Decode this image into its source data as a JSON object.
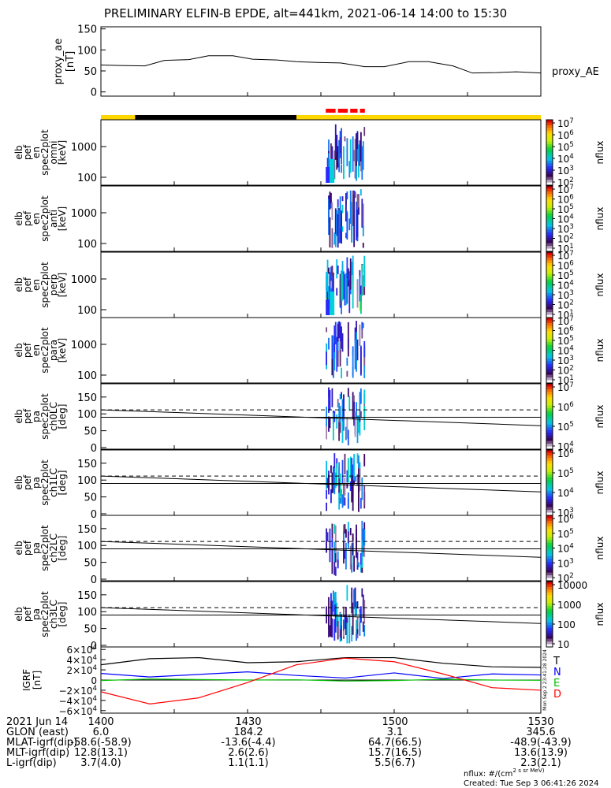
{
  "title": "PRELIMINARY ELFIN-B EPDE, alt=441km, 2021-06-14 14:00 to 15:30",
  "colors": {
    "orbit_bar_yellow": "#ffd700",
    "orbit_bar_black": "#000000",
    "science_marker_red": "#ff0000",
    "igrf_t": "#000000",
    "igrf_n": "#0000ff",
    "igrf_e": "#00c000",
    "igrf_d": "#ff0000"
  },
  "chart_data": [
    {
      "type": "line",
      "name": "proxy_ae",
      "ylabel_lines": [
        "proxy_ae",
        "[nT]"
      ],
      "legend": "proxy_AE",
      "ylim": [
        -10,
        155
      ],
      "yticks": [
        "0",
        "50",
        "100",
        "150"
      ],
      "x_minutes": [
        0,
        4,
        9,
        13,
        18,
        22,
        27,
        31,
        36,
        40,
        45,
        49,
        54,
        58,
        63,
        67,
        72,
        76,
        81,
        85,
        90
      ],
      "values": [
        64,
        63,
        62,
        75,
        77,
        86,
        86,
        78,
        76,
        72,
        70,
        69,
        60,
        60,
        72,
        72,
        62,
        45,
        46,
        48,
        45
      ]
    },
    {
      "type": "heatmap",
      "name": "elb_pef_en_spec2plot_omni",
      "ylabel_lines": [
        "elb",
        "pef",
        "en",
        "spec2plot",
        "omni",
        "[keV]"
      ],
      "yscale": "log",
      "yticks": [
        "100",
        "1000"
      ],
      "colorbar_label": "nflux",
      "colorbar_ticks": [
        "10^2",
        "10^3",
        "10^4",
        "10^5",
        "10^6",
        "10^7"
      ],
      "active_window_minutes": [
        46,
        54
      ]
    },
    {
      "type": "heatmap",
      "name": "elb_pef_en_spec2plot_anti",
      "ylabel_lines": [
        "elb",
        "pef",
        "en",
        "spec2plot",
        "anti",
        "[keV]"
      ],
      "yscale": "log",
      "yticks": [
        "100",
        "1000"
      ],
      "colorbar_label": "nflux",
      "colorbar_ticks": [
        "10^1",
        "10^2",
        "10^3",
        "10^4",
        "10^5",
        "10^6",
        "10^7"
      ]
    },
    {
      "type": "heatmap",
      "name": "elb_pef_en_spec2plot_perp",
      "ylabel_lines": [
        "elb",
        "pef",
        "en",
        "spec2plot",
        "perp",
        "[keV]"
      ],
      "yscale": "log",
      "yticks": [
        "100",
        "1000"
      ],
      "colorbar_label": "nflux",
      "colorbar_ticks": [
        "10^1",
        "10^2",
        "10^3",
        "10^4",
        "10^5",
        "10^6",
        "10^7"
      ]
    },
    {
      "type": "heatmap",
      "name": "elb_pef_en_spec2plot_para",
      "ylabel_lines": [
        "elb",
        "pef",
        "en",
        "spec2plot",
        "para",
        "[keV]"
      ],
      "yscale": "log",
      "yticks": [
        "100",
        "1000"
      ],
      "colorbar_label": "nflux",
      "colorbar_ticks": [
        "10^1",
        "10^2",
        "10^3",
        "10^4",
        "10^5",
        "10^6",
        "10^7"
      ]
    },
    {
      "type": "heatmap",
      "name": "elb_pef_pa_spec2plot_ch0LC",
      "ylabel_lines": [
        "elb",
        "pef",
        "pa",
        "spec2plot",
        "ch0LC",
        "[deg]"
      ],
      "yticks": [
        "0",
        "50",
        "100",
        "150"
      ],
      "ylim": [
        0,
        180
      ],
      "colorbar_label": "nflux",
      "colorbar_ticks": [
        "10^4",
        "10^5",
        "10^6",
        "10^7"
      ]
    },
    {
      "type": "heatmap",
      "name": "elb_pef_pa_spec2plot_ch1LC",
      "ylabel_lines": [
        "elb",
        "pef",
        "pa",
        "spec2plot",
        "ch1LC",
        "[deg]"
      ],
      "yticks": [
        "0",
        "50",
        "100",
        "150"
      ],
      "ylim": [
        0,
        180
      ],
      "colorbar_label": "nflux",
      "colorbar_ticks": [
        "10^3",
        "10^4",
        "10^5",
        "10^6"
      ]
    },
    {
      "type": "heatmap",
      "name": "elb_pef_pa_spec2plot_ch2LC",
      "ylabel_lines": [
        "elb",
        "pef",
        "pa",
        "spec2plot",
        "ch2LC",
        "[deg]"
      ],
      "yticks": [
        "0",
        "50",
        "100",
        "150"
      ],
      "ylim": [
        0,
        180
      ],
      "colorbar_label": "nflux",
      "colorbar_ticks": [
        "10^2",
        "10^3",
        "10^4",
        "10^5",
        "10^6"
      ]
    },
    {
      "type": "heatmap",
      "name": "elb_pef_pa_spec2plot_ch3LC",
      "ylabel_lines": [
        "elb",
        "pef",
        "pa",
        "spec2plot",
        "ch3LC",
        "[deg]"
      ],
      "yticks": [
        "0",
        "50",
        "100",
        "150"
      ],
      "ylim": [
        0,
        180
      ],
      "colorbar_label": "nflux",
      "colorbar_ticks": [
        "10",
        "100",
        "1000",
        "10000"
      ]
    },
    {
      "type": "line",
      "name": "IGRF",
      "ylabel_lines": [
        "IGRF",
        "[nT]"
      ],
      "yticks": [
        "6×10^4",
        "4×10^4",
        "2×10^4",
        "0",
        "−2×10^4",
        "−4×10^4",
        "−6×10^4"
      ],
      "ylim": [
        -65000,
        65000
      ],
      "legend": [
        "T",
        "N",
        "E",
        "D"
      ],
      "side_stamp": "Mon Sep 2 23:41:28 2024",
      "x_minutes": [
        0,
        10,
        20,
        30,
        40,
        50,
        60,
        70,
        80,
        90
      ],
      "series": [
        {
          "name": "T",
          "values": [
            30000,
            42000,
            44000,
            34000,
            36000,
            44000,
            44000,
            33000,
            26000,
            25000
          ]
        },
        {
          "name": "N",
          "values": [
            13000,
            6000,
            11000,
            16000,
            9000,
            4000,
            14000,
            3000,
            12000,
            10000
          ]
        },
        {
          "name": "E",
          "values": [
            -1000,
            2000,
            1000,
            0,
            500,
            -2000,
            -1000,
            1500,
            0,
            -500
          ]
        },
        {
          "name": "D",
          "values": [
            -23000,
            -47000,
            -35000,
            -5000,
            30000,
            43000,
            36000,
            12000,
            -15000,
            -20000
          ]
        }
      ]
    }
  ],
  "x_axis": {
    "tick_labels": [
      "1400",
      "1430",
      "1500",
      "1530"
    ],
    "tick_minutes": [
      0,
      30,
      60,
      90
    ]
  },
  "ephemeris": {
    "rows": [
      {
        "label": "2021 Jun 14",
        "values": [
          "1400",
          "1430",
          "1500",
          "1530"
        ]
      },
      {
        "label": "GLON (east)",
        "values": [
          "6.0",
          "184.2",
          "3.1",
          "345.6"
        ]
      },
      {
        "label": "MLAT-igrf(dip)",
        "values": [
          "-58.6(-58.9)",
          "-13.6(-4.4)",
          "64.7(66.5)",
          "-48.9(-43.9)"
        ]
      },
      {
        "label": "MLT-igrf(dip)",
        "values": [
          "12.8(13.1)",
          "2.6(2.6)",
          "15.7(16.5)",
          "13.6(13.9)"
        ]
      },
      {
        "label": "L-igrf(dip)",
        "values": [
          "3.7(4.0)",
          "1.1(1.1)",
          "5.5(6.7)",
          "2.3(2.1)"
        ]
      }
    ]
  },
  "footer": {
    "units": "nflux: #/(cm^2 s sr MeV)",
    "created": "Created: Tue Sep  3 06:41:26 2024"
  }
}
